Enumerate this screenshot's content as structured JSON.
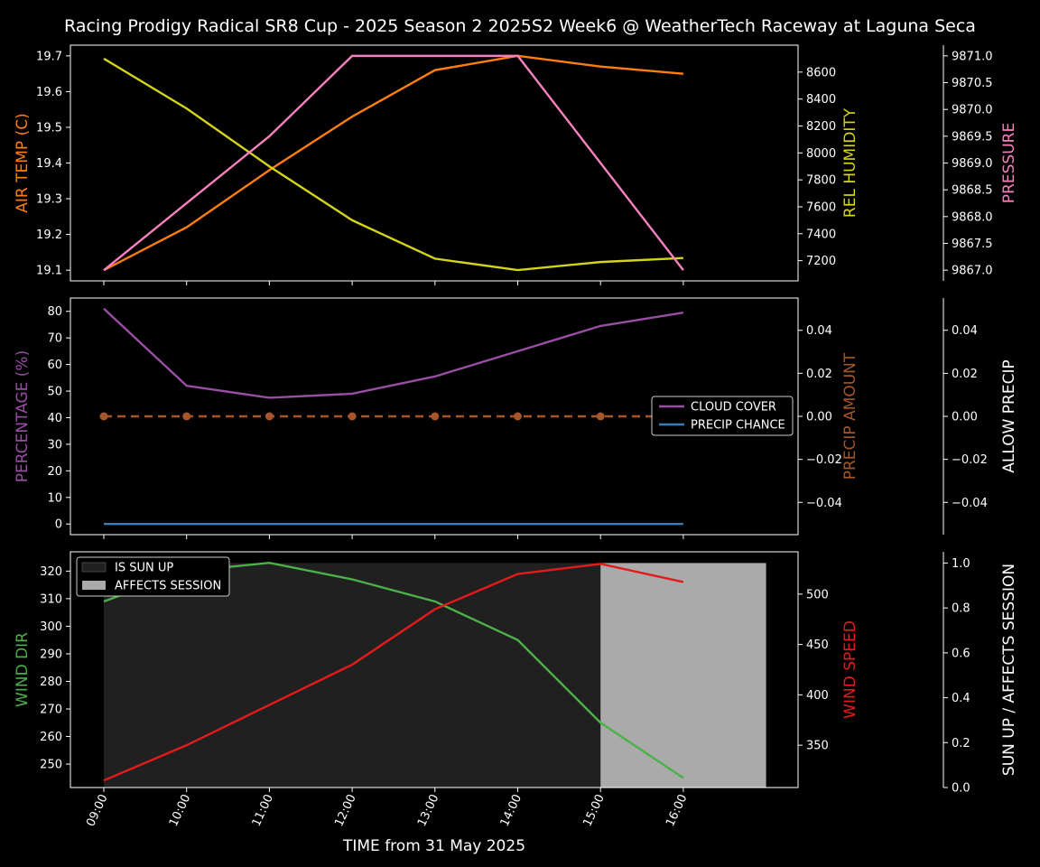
{
  "title": "Racing Prodigy Radical SR8 Cup - 2025 Season 2 2025S2 Week6 @ WeatherTech Raceway at Laguna Seca",
  "xlabel": "TIME from 31 May 2025",
  "colors": {
    "air_temp": "#ff7f0e",
    "humidity": "#d4d41a",
    "pressure": "#f781bf",
    "cloud": "#984ea3",
    "precip_chance": "#377eb8",
    "precip_amount": "#a65628",
    "wind_dir": "#4daf4a",
    "wind_speed": "#e41a1c",
    "sun_up": "#202020",
    "affects": "#aaaaaa"
  },
  "chart_data": [
    {
      "type": "line",
      "x": [
        "09:00",
        "10:00",
        "11:00",
        "12:00",
        "13:00",
        "14:00",
        "15:00",
        "16:00"
      ],
      "series": [
        {
          "name": "AIR TEMP (C)",
          "axis": "left",
          "values": [
            19.1,
            19.22,
            19.38,
            19.53,
            19.66,
            19.7,
            19.67,
            19.65
          ]
        },
        {
          "name": "REL HUMIDITY",
          "axis": "right",
          "values": [
            8700,
            8330,
            7900,
            7500,
            7215,
            7130,
            7190,
            7220
          ]
        },
        {
          "name": "PRESSURE",
          "axis": "far-right",
          "values": [
            9867.0,
            9868.25,
            9869.5,
            9871.0,
            9871.0,
            9871.0,
            9869.0,
            9867.0
          ]
        }
      ],
      "ylabel": "AIR TEMP (C)",
      "ylim": [
        19.07,
        19.73
      ],
      "yticks": [
        "19.1",
        "19.2",
        "19.3",
        "19.4",
        "19.5",
        "19.6",
        "19.7"
      ],
      "y2label": "REL HUMIDITY",
      "y2lim": [
        7050,
        8800
      ],
      "y2ticks": [
        "7200",
        "7400",
        "7600",
        "7800",
        "8000",
        "8200",
        "8400",
        "8600"
      ],
      "y3label": "PRESSURE",
      "y3lim": [
        9866.8,
        9871.2
      ],
      "y3ticks": [
        "9867.0",
        "9867.5",
        "9868.0",
        "9868.5",
        "9869.0",
        "9869.5",
        "9870.0",
        "9870.5",
        "9871.0"
      ]
    },
    {
      "type": "line",
      "x": [
        "09:00",
        "10:00",
        "11:00",
        "12:00",
        "13:00",
        "14:00",
        "15:00",
        "16:00"
      ],
      "series": [
        {
          "name": "CLOUD COVER",
          "axis": "left",
          "values": [
            81,
            52,
            47.5,
            49,
            55.5,
            65,
            74.5,
            79.5
          ]
        },
        {
          "name": "PRECIP CHANCE",
          "axis": "left",
          "values": [
            0,
            0,
            0,
            0,
            0,
            0,
            0,
            0
          ]
        },
        {
          "name": "PRECIP AMOUNT",
          "axis": "right",
          "values": [
            0,
            0,
            0,
            0,
            0,
            0,
            0,
            0
          ]
        }
      ],
      "ylabel": "PERCENTAGE (%)",
      "ylim": [
        -4,
        85
      ],
      "yticks": [
        "0",
        "10",
        "20",
        "30",
        "40",
        "50",
        "60",
        "70",
        "80"
      ],
      "y2label": "PRECIP AMOUNT",
      "y2lim": [
        -0.055,
        0.055
      ],
      "y2ticks": [
        "−0.04",
        "−0.02",
        "0.00",
        "0.02",
        "0.04"
      ],
      "y3label": "ALLOW PRECIP",
      "y3lim": [
        -0.055,
        0.055
      ],
      "y3ticks": [
        "−0.04",
        "−0.02",
        "0.00",
        "0.02",
        "0.04"
      ],
      "legend": [
        "CLOUD COVER",
        "PRECIP CHANCE"
      ],
      "legend_position": "center-right"
    },
    {
      "type": "line",
      "x": [
        "09:00",
        "10:00",
        "11:00",
        "12:00",
        "13:00",
        "14:00",
        "15:00",
        "16:00"
      ],
      "series": [
        {
          "name": "WIND DIR",
          "axis": "left",
          "values": [
            309,
            320,
            323,
            317,
            309,
            295,
            265,
            245
          ]
        },
        {
          "name": "WIND SPEED",
          "axis": "right",
          "values": [
            315,
            350,
            390,
            430,
            485,
            520,
            530,
            512
          ]
        }
      ],
      "bands": [
        {
          "name": "IS SUN UP",
          "from": "09:00",
          "to": "15:00",
          "value": 1
        },
        {
          "name": "AFFECTS SESSION",
          "from": "15:00",
          "to": "17:00",
          "value": 1
        }
      ],
      "ylabel": "WIND DIR",
      "ylim": [
        241.5,
        327
      ],
      "yticks": [
        "250",
        "260",
        "270",
        "280",
        "290",
        "300",
        "310",
        "320"
      ],
      "y2label": "WIND SPEED",
      "y2lim": [
        308,
        542
      ],
      "y2ticks": [
        "350",
        "400",
        "450",
        "500"
      ],
      "y3label": "SUN UP / AFFECTS SESSION",
      "y3lim": [
        0,
        1.05
      ],
      "y3ticks": [
        "0.0",
        "0.2",
        "0.4",
        "0.6",
        "0.8",
        "1.0"
      ],
      "legend": [
        "IS SUN UP",
        "AFFECTS SESSION"
      ],
      "legend_position": "top-left"
    }
  ]
}
